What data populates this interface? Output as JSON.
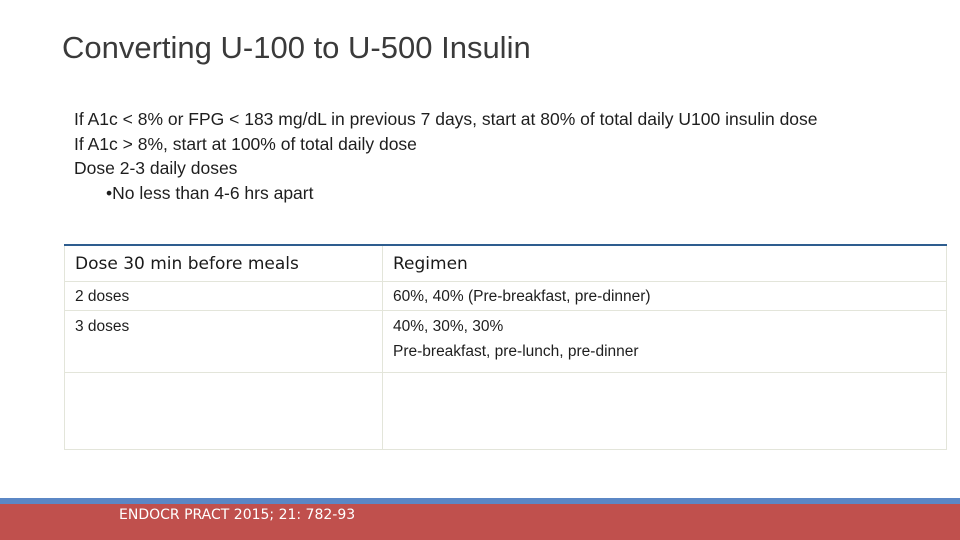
{
  "slide": {
    "title": "Converting U-100 to U-500 Insulin",
    "bullets": [
      "If A1c < 8% or FPG < 183 mg/dL in previous 7 days, start at 80% of total daily U100 insulin dose",
      "If A1c > 8%, start at 100% of total daily dose",
      "Dose 2-3 daily doses"
    ],
    "sub_bullet": "•No less than 4-6 hrs apart"
  },
  "table": {
    "headers": [
      "Dose 30 min before meals",
      "Regimen"
    ],
    "rows": [
      {
        "dose": "2 doses",
        "regimen_line1": "60%, 40%  (Pre-breakfast, pre-dinner)",
        "regimen_line2": ""
      },
      {
        "dose": "3 doses",
        "regimen_line1": "40%, 30%, 30%",
        "regimen_line2": "Pre-breakfast, pre-lunch, pre-dinner"
      },
      {
        "dose": "",
        "regimen_line1": "",
        "regimen_line2": ""
      }
    ]
  },
  "footer": {
    "citation": "ENDOCR PRACT 2015; 21: 782-93"
  },
  "colors": {
    "header_rule": "#2e5d8f",
    "footer_blue": "#5b87c5",
    "footer_red": "#c0504d"
  }
}
